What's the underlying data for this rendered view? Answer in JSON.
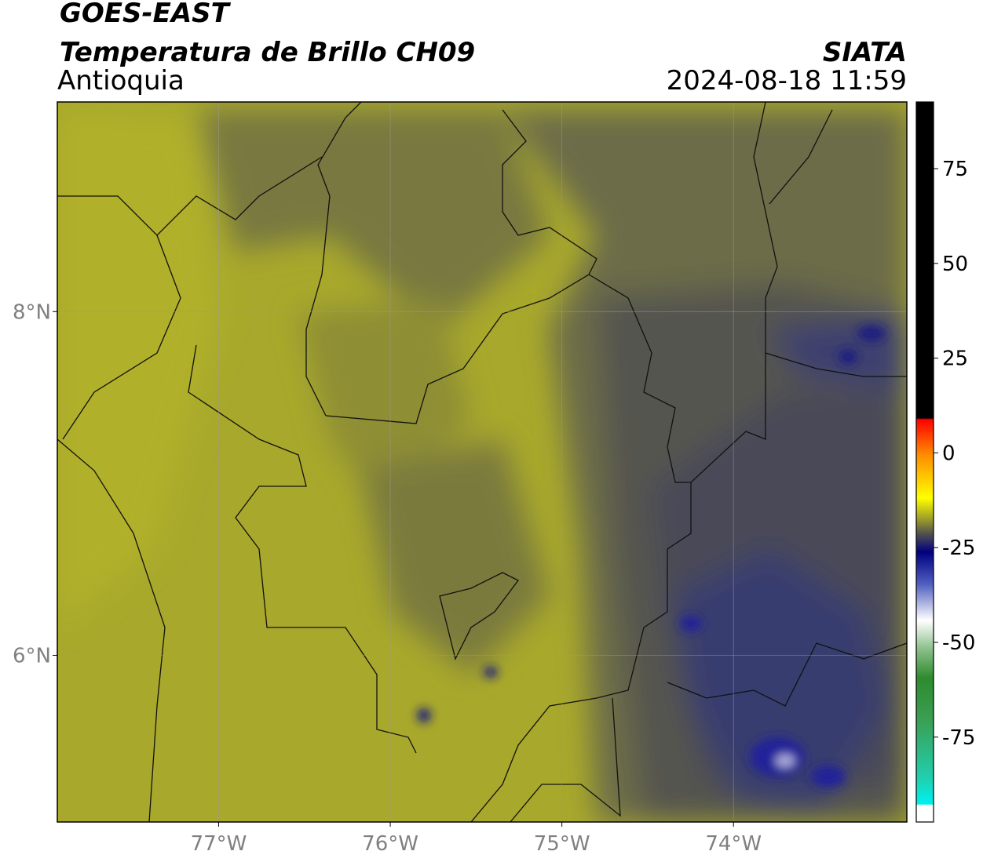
{
  "chart_data": {
    "type": "map",
    "title": "GOES-EAST",
    "subtitle": "Temperatura de Brillo CH09",
    "region": "Antioquia",
    "source": "SIATA",
    "timestamp": "2024-08-18 11:59",
    "xlim": [
      -77.94,
      -72.99
    ],
    "ylim": [
      5.03,
      9.22
    ],
    "xticks": [
      {
        "value": -77,
        "label": "77°W"
      },
      {
        "value": -76,
        "label": "76°W"
      },
      {
        "value": -75,
        "label": "75°W"
      },
      {
        "value": -74,
        "label": "74°W"
      }
    ],
    "yticks": [
      {
        "value": 6,
        "label": "6°N"
      },
      {
        "value": 8,
        "label": "8°N"
      }
    ],
    "grid": true,
    "clim": [
      -97.4,
      92.6
    ],
    "cticks": [
      -75,
      -50,
      -25,
      0,
      25,
      50,
      75
    ]
  }
}
